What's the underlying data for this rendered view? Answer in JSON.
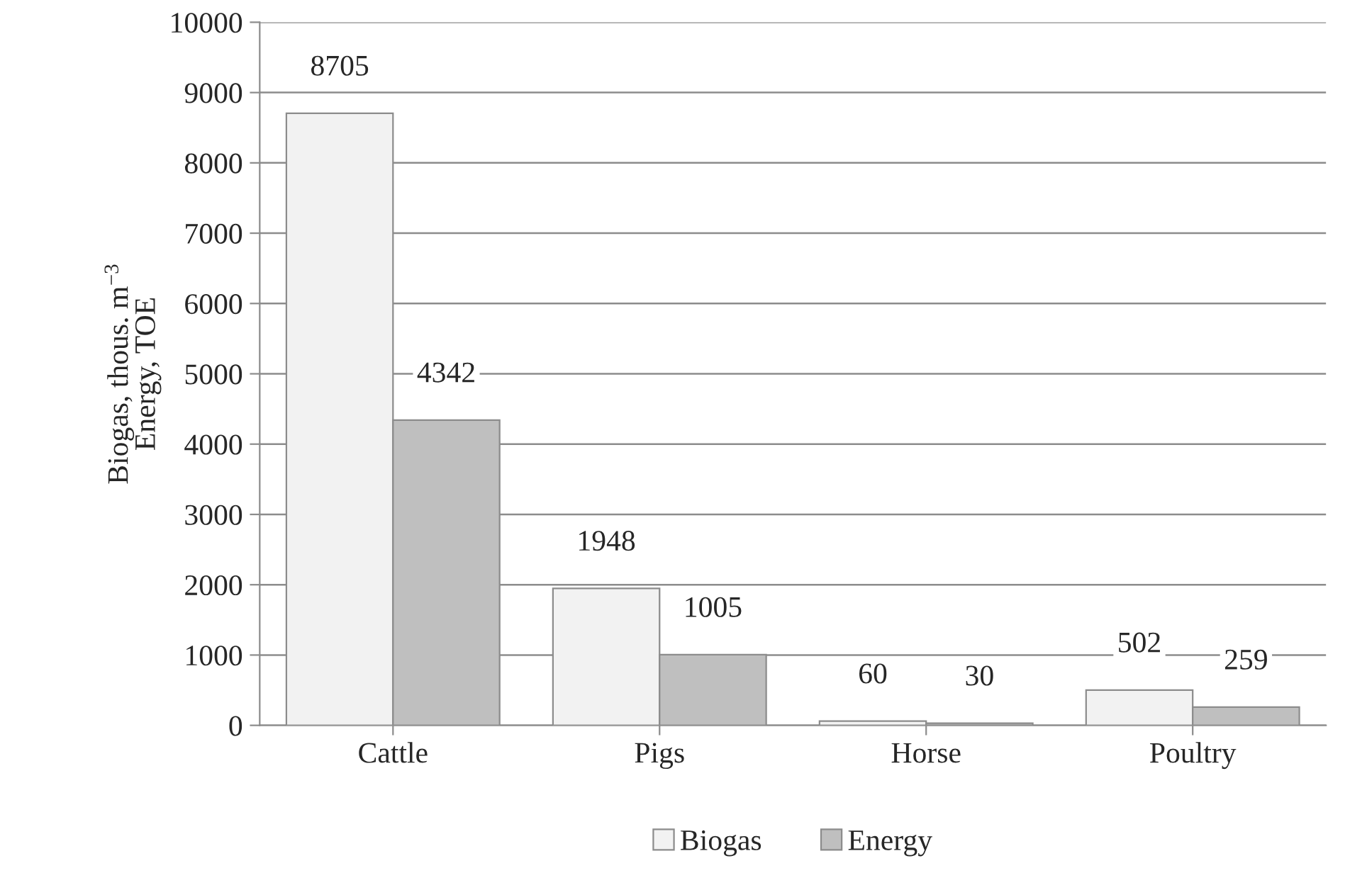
{
  "chart_data": {
    "type": "bar",
    "ylabel": "Biogas, thous. m$^{−3}$\nEnergy, TOE",
    "categories": [
      "Cattle",
      "Pigs",
      "Horse",
      "Poultry"
    ],
    "series": [
      {
        "name": "Biogas",
        "color": "#f2f2f2",
        "values": [
          8705,
          1948,
          60,
          502
        ]
      },
      {
        "name": "Energy",
        "color": "#bfbfbf",
        "values": [
          4342,
          1005,
          30,
          259
        ]
      }
    ],
    "ylim": [
      0,
      10000
    ],
    "yticks": [
      0,
      1000,
      2000,
      3000,
      4000,
      5000,
      6000,
      7000,
      8000,
      9000,
      10000
    ],
    "grid": "y",
    "legend": "bottom",
    "data_labels": true
  }
}
